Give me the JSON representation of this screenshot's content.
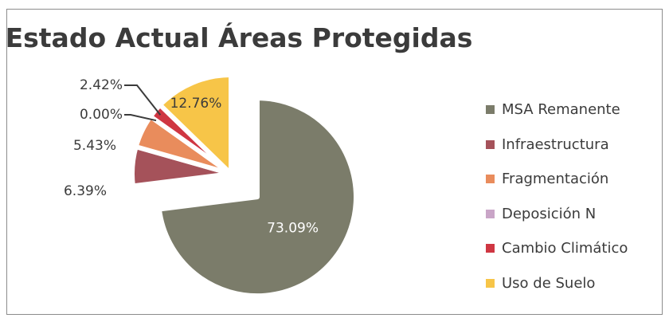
{
  "chart_data": {
    "type": "pie",
    "title": "Estado Actual Áreas Protegidas",
    "exploded": true,
    "legend_position": "right",
    "series": [
      {
        "name": "MSA Remanente",
        "value": 73.09,
        "label": "73.09%",
        "color": "#7b7c6a",
        "label_color": "#ffffff"
      },
      {
        "name": "Infraestructura",
        "value": 6.39,
        "label": "6.39%",
        "color": "#a5525a",
        "label_color": "#3b3b3b"
      },
      {
        "name": "Fragmentación",
        "value": 5.43,
        "label": "5.43%",
        "color": "#e98c5c",
        "label_color": "#3b3b3b"
      },
      {
        "name": "Deposición N",
        "value": 0.0,
        "label": "0.00%",
        "color": "#c9a5c7",
        "label_color": "#3b3b3b"
      },
      {
        "name": "Cambio Climático",
        "value": 2.42,
        "label": "2.42%",
        "color": "#cf3642",
        "label_color": "#3b3b3b"
      },
      {
        "name": "Uso de Suelo",
        "value": 12.76,
        "label": "12.76%",
        "color": "#f7c548",
        "label_color": "#3b3b3b"
      }
    ]
  }
}
